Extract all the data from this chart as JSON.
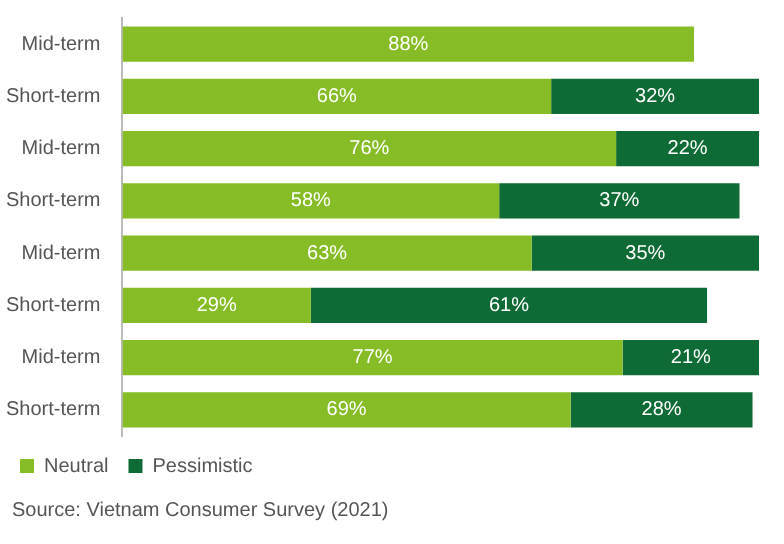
{
  "chart_data": {
    "type": "bar",
    "orientation": "horizontal",
    "stacked": true,
    "legend": "bottom left",
    "categories": [
      "Mid-term",
      "Short-term",
      "Mid-term",
      "Short-term",
      "Mid-term",
      "Short-term",
      "Mid-term",
      "Short-term"
    ],
    "series": [
      {
        "name": "Neutral",
        "color": "#86bc25",
        "values": [
          88,
          66,
          76,
          58,
          63,
          29,
          77,
          69
        ],
        "value_labels": [
          "88%",
          "66%",
          "76%",
          "58%",
          "63%",
          "29%",
          "77%",
          "69%"
        ]
      },
      {
        "name": "Pessimistic",
        "color": "#0f6b35",
        "values": [
          null,
          32,
          22,
          37,
          35,
          61,
          21,
          28
        ],
        "value_labels": [
          null,
          "32%",
          "22%",
          "37%",
          "35%",
          "61%",
          "21%",
          "28%"
        ]
      }
    ],
    "annotations": [
      "Source: Vietnam Consumer Survey (2021)"
    ]
  }
}
